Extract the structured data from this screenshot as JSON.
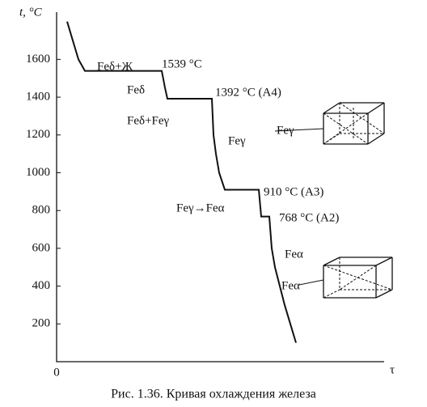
{
  "chart_data": {
    "type": "line",
    "y_label": "t, °C",
    "x_label": "τ",
    "caption": "Рис. 1.36. Кривая охлаждения железа",
    "x": [
      3.25,
      5,
      6.75,
      8.75,
      32.5,
      33.5,
      34.25,
      48,
      48.5,
      49.25,
      50.25,
      52,
      62.5,
      63.25,
      65.75,
      66.5,
      67.5,
      69,
      70.5,
      72.25,
      74
    ],
    "series": [
      {
        "name": "cooling",
        "color": "#111111",
        "values": [
          1800,
          1700,
          1600,
          1539,
          1539,
          1450,
          1392,
          1392,
          1200,
          1100,
          1000,
          910,
          910,
          768,
          768,
          600,
          500,
          400,
          300,
          200,
          100
        ]
      }
    ],
    "xlim": [
      0,
      100
    ],
    "xticks": [
      0
    ],
    "ylim": [
      0,
      1850
    ],
    "yticks": [
      200,
      400,
      600,
      800,
      1000,
      1200,
      1400,
      1600
    ],
    "annotations": [
      "Feδ+Ж",
      "1539 °C",
      "Feδ",
      "1392 °C (A4)",
      "Feδ+Feγ",
      "Feγ",
      "910 °C (A3)",
      "Feγ→Feα",
      "768 °C (A2)",
      "Feα",
      "Feα",
      "Feγ"
    ]
  }
}
